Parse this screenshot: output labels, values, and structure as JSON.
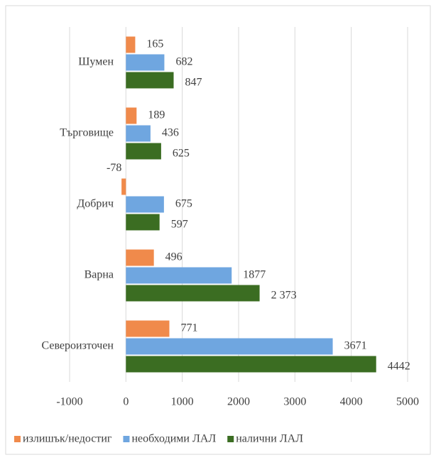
{
  "chart_data": {
    "type": "bar",
    "orientation": "horizontal",
    "categories": [
      "Шумен",
      "Търговище",
      "Добрич",
      "Варна",
      "Североизточен"
    ],
    "series": [
      {
        "name": "излишък/недостиг",
        "color": "#f08a4b",
        "values": [
          165,
          189,
          -78,
          496,
          771
        ]
      },
      {
        "name": "необходими ЛАЛ",
        "color": "#6fa6e0",
        "values": [
          682,
          436,
          675,
          1877,
          3671
        ]
      },
      {
        "name": "налични  ЛАЛ",
        "color": "#3b6d22",
        "values": [
          847,
          625,
          597,
          2373,
          4442
        ],
        "value_labels": [
          "847",
          "625",
          "597",
          "2 373",
          "4442"
        ]
      }
    ],
    "xlim": [
      -1000,
      5000
    ],
    "xticks": [
      -1000,
      0,
      1000,
      2000,
      3000,
      4000,
      5000
    ],
    "grid": true,
    "legend": "bottom"
  }
}
